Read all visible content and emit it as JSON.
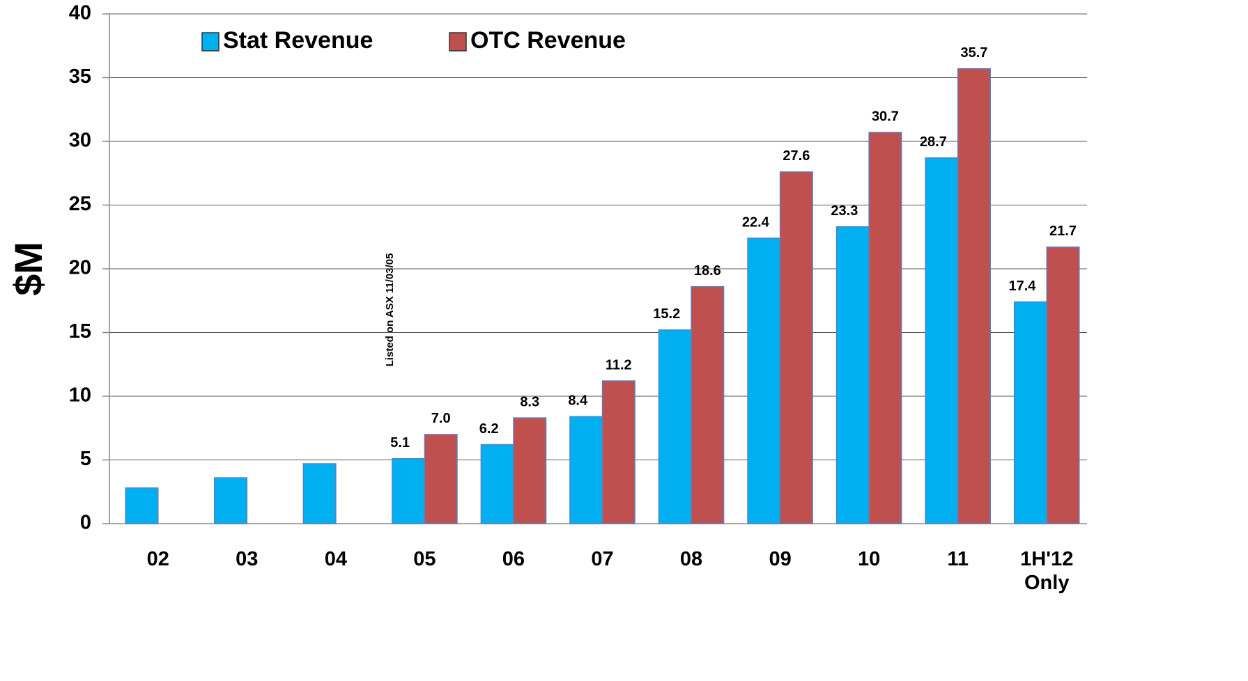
{
  "chart_data": {
    "type": "bar",
    "y_label": "$M",
    "annotation": "Listed on ASX 11/03/05",
    "categories": [
      "02",
      "03",
      "04",
      "05",
      "06",
      "07",
      "08",
      "09",
      "10",
      "11",
      "1H'12 Only"
    ],
    "series": [
      {
        "name": "Stat Revenue",
        "color": "#00b0f0",
        "values": [
          2.8,
          3.6,
          4.7,
          5.1,
          6.2,
          8.4,
          15.2,
          22.4,
          23.3,
          28.7,
          17.4
        ],
        "value_labels": [
          null,
          null,
          null,
          "5.1",
          "6.2",
          "8.4",
          "15.2",
          "22.4",
          "23.3",
          "28.7",
          "17.4"
        ]
      },
      {
        "name": "OTC Revenue",
        "color": "#c0504d",
        "values": [
          null,
          null,
          null,
          7.0,
          8.3,
          11.2,
          18.6,
          27.6,
          30.7,
          35.7,
          21.7
        ],
        "value_labels": [
          null,
          null,
          null,
          "7.0",
          "8.3",
          "11.2",
          "18.6",
          "27.6",
          "30.7",
          "35.7",
          "21.7"
        ]
      }
    ],
    "ylim": [
      0,
      40
    ],
    "yticks": [
      0,
      5,
      10,
      15,
      20,
      25,
      30,
      35,
      40
    ],
    "grid": true,
    "legend": "top-left"
  }
}
